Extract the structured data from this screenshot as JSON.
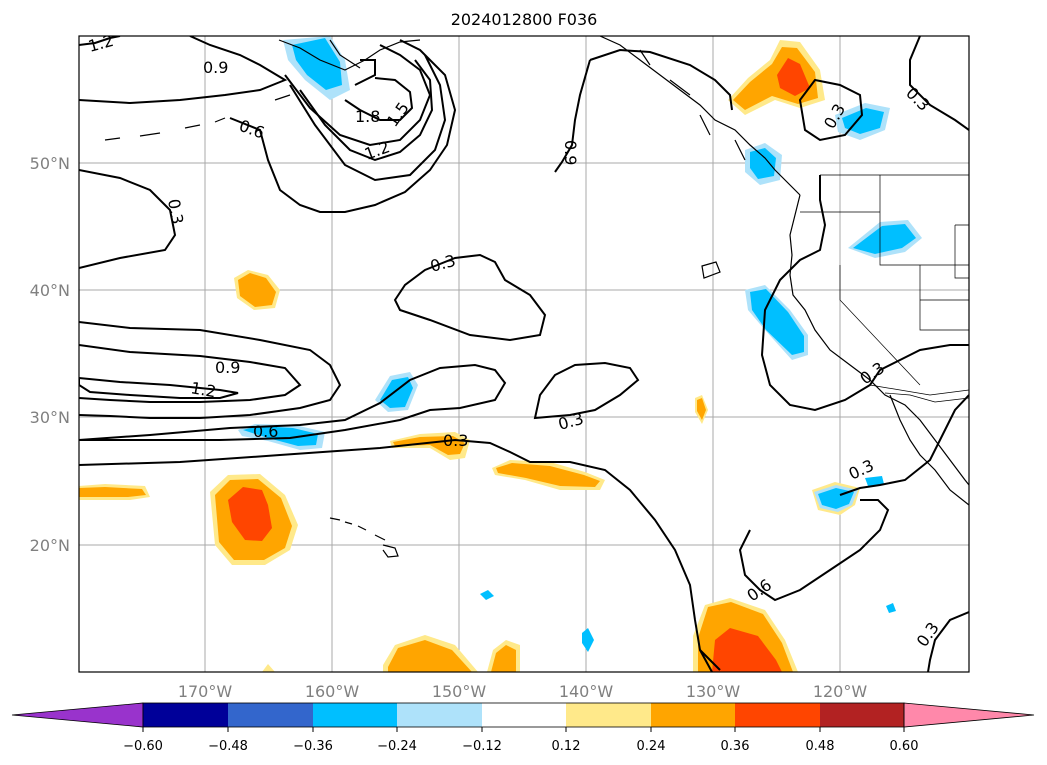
{
  "map": {
    "title": "2024012800 F036",
    "lat_labels": [
      "50°N",
      "40°N",
      "30°N",
      "20°N"
    ],
    "lon_labels": [
      "170°W",
      "160°W",
      "150°W",
      "140°W",
      "130°W",
      "120°W"
    ],
    "grid": true,
    "contour_color": "#000000",
    "contour_labels": [
      "1.2",
      "0.9",
      "0.6",
      "1.8",
      "1.5",
      "1.2",
      "0.9",
      "0.3",
      "0.3",
      "0.3",
      "0.9",
      "1.2",
      "0.6",
      "0.3",
      "0.3",
      "0.3",
      "0.3",
      "0.6",
      "0.3",
      "0.3",
      "0.3"
    ]
  },
  "colorbar": {
    "colors": [
      "#9933cc",
      "#000099",
      "#3366cc",
      "#00bfff",
      "#aee2fa",
      "#ffffff",
      "#ffe98a",
      "#ffa500",
      "#ff4500",
      "#b22222",
      "#ff88aa"
    ],
    "ticks": [
      "−0.60",
      "−0.48",
      "−0.36",
      "−0.24",
      "−0.12",
      "0.12",
      "0.24",
      "0.36",
      "0.48",
      "0.60"
    ]
  }
}
